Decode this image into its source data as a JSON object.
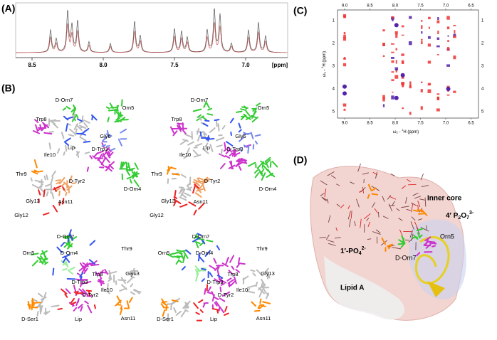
{
  "panels": {
    "a": {
      "label": "(A)",
      "x_ticks": [
        "8.5",
        "8.0",
        "7.5",
        "7.0"
      ],
      "x_unit": "[ppm]"
    },
    "b": {
      "label": "(B)",
      "top_left": [
        "D-Orn7",
        "Orn5",
        "Trp8",
        "Gly6",
        "Lip",
        "D-Trp3",
        "Ile10",
        "Thr9",
        "D-Tyr2",
        "D-Orn4",
        "Gly13",
        "Asn11",
        "Gly12"
      ],
      "top_right": [
        "D-Orn7",
        "Orn5",
        "Trp8",
        "Gly6",
        "Lip",
        "D-Trp3",
        "Ile10",
        "Thr9",
        "D-Tyr2",
        "D-Orn4",
        "Gly13",
        "Asn11",
        "Gly12"
      ],
      "bottom_left": [
        "D-Orn7",
        "Orn5",
        "D-Orn4",
        "Thr9",
        "Trp8",
        "D-Trp3",
        "Gly13",
        "Ile10",
        "D-Tyr2",
        "D-Ser1",
        "Lip",
        "Asn11"
      ],
      "bottom_right": [
        "D-Orn7",
        "Orn5",
        "D-Orn4",
        "Thr9",
        "Trp8",
        "D-Trp3",
        "Gly13",
        "Ile10",
        "D-Tyr2",
        "D-Ser1",
        "Lip",
        "Asn11"
      ]
    },
    "c": {
      "label": "(C)",
      "x_ticks_top": [
        "9.0",
        "8.5",
        "8.0",
        "7.5",
        "7.0",
        "6.5"
      ],
      "x_ticks_bottom": [
        "9.0",
        "8.5",
        "8.0",
        "7.5",
        "7.0",
        "6.5"
      ],
      "y_ticks_left": [
        "1",
        "2",
        "3",
        "4",
        "5"
      ],
      "y_ticks_right": [
        "1",
        "2",
        "3",
        "4",
        "5"
      ],
      "y_axis_label": [
        "ω",
        "1",
        " - ",
        "1",
        "H (ppm)"
      ],
      "x_axis_label": [
        "ω",
        "2",
        " - ",
        "1",
        "H (ppm)"
      ]
    },
    "d": {
      "label": "(D)",
      "inner_core": "Inner core",
      "pyrophosphate": [
        "4′ P",
        "2",
        "O",
        "7",
        "3-"
      ],
      "orn5": "Orn5",
      "phosphate": [
        "1′-PO",
        "4",
        "2-"
      ],
      "d_orn7": "D-Orn7",
      "lipid_a": "Lipid A"
    }
  }
}
